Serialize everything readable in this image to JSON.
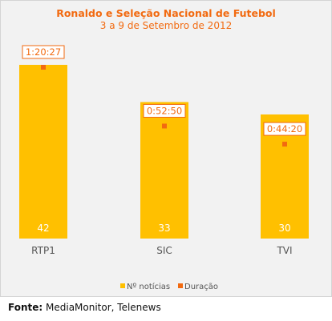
{
  "colors": {
    "bar": "#FFC000",
    "marker": "#F26A10",
    "title": "#F26A10",
    "label_border": "#F26A10",
    "bar_label": "#ffffff",
    "axis_label": "#555555"
  },
  "chart_data": {
    "type": "bar",
    "title": "Ronaldo e Seleção Nacional de Futebol",
    "subtitle": "3 a 9 de Setembro de 2012",
    "categories": [
      "RTP1",
      "SIC",
      "TVI"
    ],
    "series": [
      {
        "name": "Nº notícias",
        "type": "bar",
        "values": [
          42,
          33,
          30
        ],
        "labels": [
          "42",
          "33",
          "30"
        ]
      },
      {
        "name": "Duração",
        "type": "marker",
        "values_seconds": [
          4827,
          3170,
          2660
        ],
        "labels": [
          "1:20:27",
          "0:52:50",
          "0:44:20"
        ]
      }
    ],
    "legend": "bottom",
    "grid": false
  },
  "source": {
    "label": "Fonte:",
    "text": "MediaMonitor, Telenews"
  }
}
